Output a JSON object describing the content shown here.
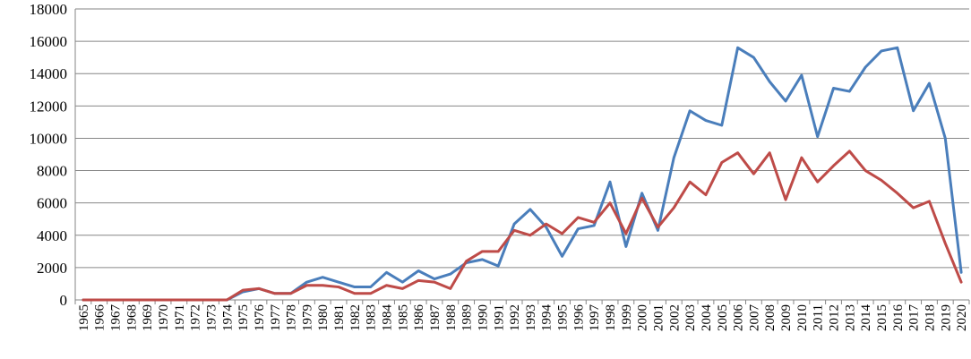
{
  "chart_data": {
    "type": "line",
    "x": [
      "1965",
      "1966",
      "1967",
      "1968",
      "1969",
      "1970",
      "1971",
      "1972",
      "1973",
      "1974",
      "1975",
      "1976",
      "1977",
      "1978",
      "1979",
      "1980",
      "1981",
      "1982",
      "1983",
      "1984",
      "1985",
      "1986",
      "1987",
      "1988",
      "1989",
      "1990",
      "1991",
      "1992",
      "1993",
      "1994",
      "1995",
      "1996",
      "1997",
      "1998",
      "1999",
      "2000",
      "2001",
      "2002",
      "2003",
      "2004",
      "2005",
      "2006",
      "2007",
      "2008",
      "2009",
      "2010",
      "2011",
      "2012",
      "2013",
      "2014",
      "2015",
      "2016",
      "2017",
      "2018",
      "2019",
      "2020"
    ],
    "series": [
      {
        "color": "#4a7ebb",
        "values": [
          0,
          0,
          0,
          0,
          0,
          0,
          0,
          0,
          0,
          0,
          500,
          700,
          400,
          400,
          1100,
          1400,
          1100,
          800,
          800,
          1700,
          1100,
          1800,
          1300,
          1600,
          2300,
          2500,
          2100,
          4700,
          5600,
          4500,
          2700,
          4400,
          4600,
          7300,
          3300,
          6600,
          4300,
          8800,
          11700,
          11100,
          10800,
          15600,
          15000,
          13500,
          12300,
          13900,
          10100,
          13100,
          12900,
          14400,
          15400,
          15600,
          11700,
          13400,
          10000,
          1700
        ]
      },
      {
        "color": "#be4b48",
        "values": [
          0,
          0,
          0,
          0,
          0,
          0,
          0,
          0,
          0,
          0,
          600,
          700,
          400,
          400,
          900,
          900,
          800,
          400,
          400,
          900,
          700,
          1200,
          1100,
          700,
          2400,
          3000,
          3000,
          4300,
          4000,
          4700,
          4100,
          5100,
          4800,
          6000,
          4100,
          6300,
          4500,
          5700,
          7300,
          6500,
          8500,
          9100,
          7800,
          9100,
          6200,
          8800,
          7300,
          8300,
          9200,
          8000,
          7400,
          6600,
          5700,
          6100,
          3500,
          1100
        ]
      }
    ],
    "ylim": [
      0,
      18000
    ],
    "yticks": [
      0,
      2000,
      4000,
      6000,
      8000,
      10000,
      12000,
      14000,
      16000,
      18000
    ],
    "grid": true,
    "gridline_color": "#868686"
  }
}
